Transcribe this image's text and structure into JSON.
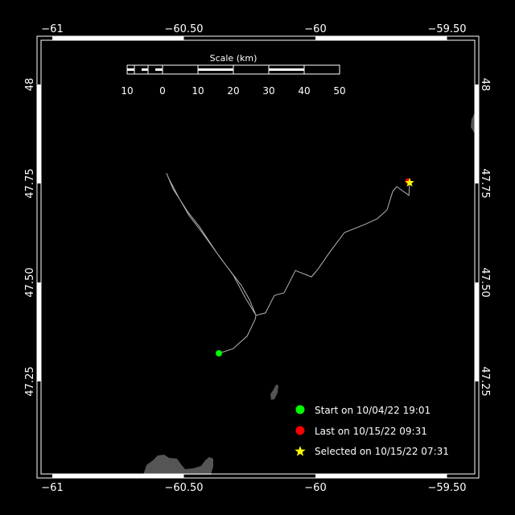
{
  "map": {
    "lon_range": [
      -61.05,
      -59.35
    ],
    "lat_range": [
      47.03,
      48.11
    ],
    "x_ticks": [
      {
        "value": -61,
        "label": "−61"
      },
      {
        "value": -60.5,
        "label": "−60.50"
      },
      {
        "value": -60,
        "label": "−60"
      },
      {
        "value": -59.5,
        "label": "−59.50"
      }
    ],
    "y_ticks": [
      {
        "value": 48,
        "label": "48"
      },
      {
        "value": 47.75,
        "label": "47.75"
      },
      {
        "value": 47.5,
        "label": "47.50"
      },
      {
        "value": 47.25,
        "label": "47.25"
      }
    ],
    "colors": {
      "track": "#b4b4b4",
      "land": "#555555",
      "start": "#00ff00",
      "last": "#ff0000",
      "selected": "#ffff00"
    },
    "track": [
      [
        -60.367,
        47.321
      ],
      [
        -60.312,
        47.333
      ],
      [
        -60.291,
        47.346
      ],
      [
        -60.26,
        47.364
      ],
      [
        -60.229,
        47.407
      ],
      [
        -60.226,
        47.417
      ],
      [
        -60.266,
        47.461
      ],
      [
        -60.312,
        47.518
      ],
      [
        -60.373,
        47.573
      ],
      [
        -60.44,
        47.64
      ],
      [
        -60.486,
        47.679
      ],
      [
        -60.511,
        47.705
      ],
      [
        -60.541,
        47.736
      ],
      [
        -60.566,
        47.776
      ],
      [
        -60.557,
        47.762
      ],
      [
        -60.52,
        47.715
      ],
      [
        -60.48,
        47.669
      ],
      [
        -60.428,
        47.624
      ],
      [
        -60.358,
        47.559
      ],
      [
        -60.281,
        47.492
      ],
      [
        -60.251,
        47.457
      ],
      [
        -60.226,
        47.417
      ],
      [
        -60.19,
        47.423
      ],
      [
        -60.156,
        47.467
      ],
      [
        -60.119,
        47.474
      ],
      [
        -60.076,
        47.53
      ],
      [
        -60.015,
        47.514
      ],
      [
        -59.991,
        47.533
      ],
      [
        -59.945,
        47.577
      ],
      [
        -59.89,
        47.626
      ],
      [
        -59.807,
        47.648
      ],
      [
        -59.765,
        47.661
      ],
      [
        -59.728,
        47.683
      ],
      [
        -59.706,
        47.73
      ],
      [
        -59.691,
        47.742
      ],
      [
        -59.645,
        47.72
      ],
      [
        -59.642,
        47.752
      ]
    ],
    "start_point": [
      -60.367,
      47.321
    ],
    "last_point": [
      -59.648,
      47.756
    ],
    "selected_point": [
      -59.642,
      47.752
    ]
  },
  "scale": {
    "title": "Scale (km)",
    "labels": [
      "10",
      "0",
      "10",
      "20",
      "30",
      "40",
      "50"
    ]
  },
  "legend": {
    "start": "Start on 10/04/22 19:01",
    "last": "Last on 10/15/22 09:31",
    "selected": "Selected on 10/15/22 07:31"
  }
}
